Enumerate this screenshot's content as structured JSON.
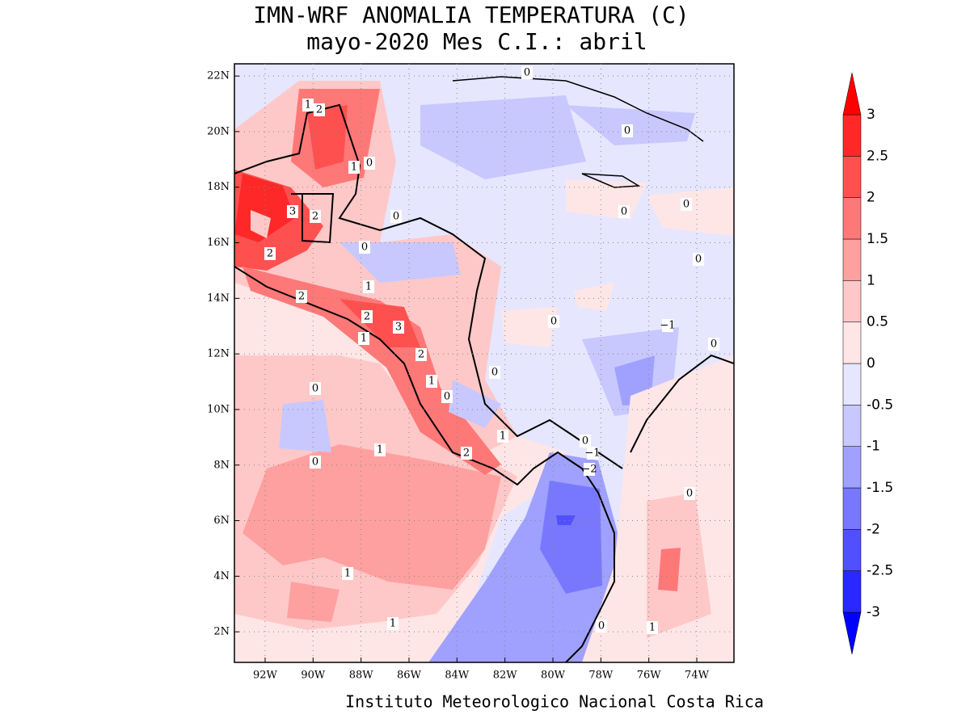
{
  "title": "IMN-WRF  ANOMALIA TEMPERATURA (C)",
  "subtitle": "mayo-2020 Mes C.I.: abril",
  "footer": "Instituto Meteorologico Nacional Costa Rica",
  "map": {
    "xlim": [
      -93.28,
      -72.45
    ],
    "ylim": [
      0.9,
      22.44
    ],
    "xticks": [
      {
        "value": -92,
        "label": "92W"
      },
      {
        "value": -90,
        "label": "90W"
      },
      {
        "value": -88,
        "label": "88W"
      },
      {
        "value": -86,
        "label": "86W"
      },
      {
        "value": -84,
        "label": "84W"
      },
      {
        "value": -82,
        "label": "82W"
      },
      {
        "value": -80,
        "label": "80W"
      },
      {
        "value": -78,
        "label": "78W"
      },
      {
        "value": -76,
        "label": "76W"
      },
      {
        "value": -74,
        "label": "74W"
      }
    ],
    "yticks": [
      {
        "value": 2,
        "label": "2N"
      },
      {
        "value": 4,
        "label": "4N"
      },
      {
        "value": 6,
        "label": "6N"
      },
      {
        "value": 8,
        "label": "8N"
      },
      {
        "value": 10,
        "label": "10N"
      },
      {
        "value": 12,
        "label": "12N"
      },
      {
        "value": 14,
        "label": "14N"
      },
      {
        "value": 16,
        "label": "16N"
      },
      {
        "value": 18,
        "label": "18N"
      },
      {
        "value": 20,
        "label": "20N"
      },
      {
        "value": 22,
        "label": "22N"
      }
    ],
    "contour_labels": [
      "0",
      "1",
      "2",
      "1",
      "0",
      "3",
      "2",
      "0",
      "0",
      "0",
      "0",
      "2",
      "0",
      "1",
      "2",
      "2",
      "3",
      "0",
      "−1",
      "1",
      "0",
      "2",
      "0",
      "1",
      "0",
      "0",
      "1",
      "0",
      "−1",
      "2",
      "1",
      "0",
      "−2",
      "0",
      "1",
      "1",
      "0",
      "1",
      "0"
    ]
  },
  "colorbar": {
    "ticks": [
      -3,
      -2.5,
      -2,
      -1.5,
      -1,
      -0.5,
      0,
      0.5,
      1,
      1.5,
      2,
      2.5,
      3
    ],
    "colors": [
      "#0000ff",
      "#2828ff",
      "#5050ff",
      "#7878ff",
      "#a0a0ff",
      "#c8c8ff",
      "#e6e6ff",
      "#ffe6e6",
      "#ffc8c8",
      "#ffa0a0",
      "#ff7878",
      "#ff5050",
      "#ff2828",
      "#ff0000"
    ]
  }
}
